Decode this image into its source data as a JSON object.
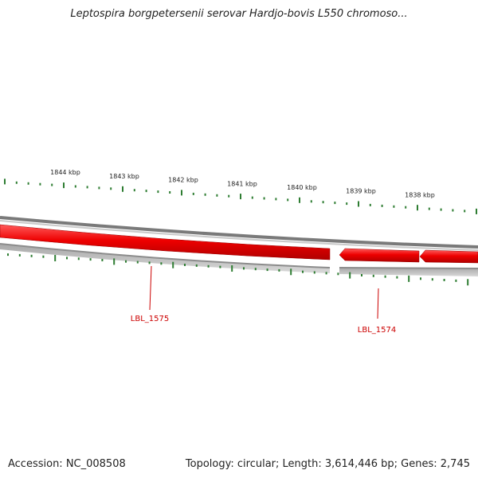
{
  "header": {
    "title": "Leptospira borgpetersenii serovar Hardjo-bovis L550 chromoso..."
  },
  "footer": {
    "accession": "Accession: NC_008508",
    "summary": "Topology: circular; Length: 3,614,446 bp; Genes: 2,745"
  },
  "map": {
    "ticks": [
      {
        "label": "1844 kbp"
      },
      {
        "label": "1843 kbp"
      },
      {
        "label": "1842 kbp"
      },
      {
        "label": "1841 kbp"
      },
      {
        "label": "1840 kbp"
      },
      {
        "label": "1839 kbp"
      },
      {
        "label": "1838 kbp"
      }
    ],
    "genes": [
      {
        "label": "LBL_1575",
        "strand": "reverse"
      },
      {
        "label": "LBL_1574",
        "strand": "reverse"
      }
    ],
    "colors": {
      "gene_fill": "#ee0000",
      "gene_label": "#cc0000",
      "tick": "#2e7d32",
      "backbone": "#888888",
      "inner_ring": "#c8c8c8"
    }
  }
}
